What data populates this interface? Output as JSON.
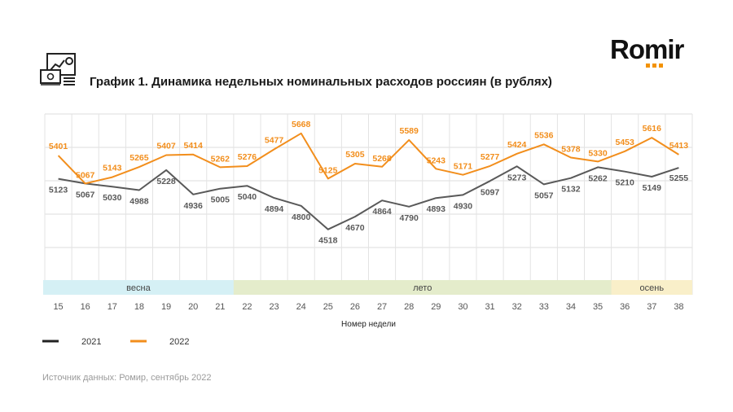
{
  "title": "График 1. Динамика недельных номинальных расходов россиян (в рублях)",
  "logo": "Romir",
  "source": "Источник данных: Ромир, сентябрь 2022",
  "colors": {
    "series_2021": "#595959",
    "series_2022": "#f28e1c",
    "spring": "#d5f0f5",
    "summer": "#e4eccb",
    "autumn": "#f9efc9"
  },
  "chart_data": {
    "type": "line",
    "x": [
      15,
      16,
      17,
      18,
      19,
      20,
      21,
      22,
      23,
      24,
      25,
      26,
      27,
      28,
      29,
      30,
      31,
      32,
      33,
      34,
      35,
      36,
      37,
      38
    ],
    "xlabel": "Номер недели",
    "ylabel": "",
    "ylim": [
      3900,
      5900
    ],
    "grid": true,
    "legend_placement": "bottom-left",
    "series": [
      {
        "name": "2021",
        "color": "#595959",
        "values": [
          5123,
          5067,
          5030,
          4988,
          5228,
          4936,
          5005,
          5040,
          4894,
          4800,
          4518,
          4670,
          4864,
          4790,
          4893,
          4930,
          5097,
          5273,
          5057,
          5132,
          5262,
          5210,
          5149,
          5255
        ]
      },
      {
        "name": "2022",
        "color": "#f28e1c",
        "values": [
          5401,
          5067,
          5143,
          5265,
          5407,
          5414,
          5262,
          5276,
          5477,
          5668,
          5125,
          5305,
          5268,
          5589,
          5243,
          5171,
          5277,
          5424,
          5536,
          5378,
          5330,
          5453,
          5616,
          5413
        ]
      }
    ],
    "seasons": [
      {
        "label": "весна",
        "from": 15,
        "to": 21
      },
      {
        "label": "лето",
        "from": 22,
        "to": 35
      },
      {
        "label": "осень",
        "from": 36,
        "to": 38
      }
    ]
  }
}
